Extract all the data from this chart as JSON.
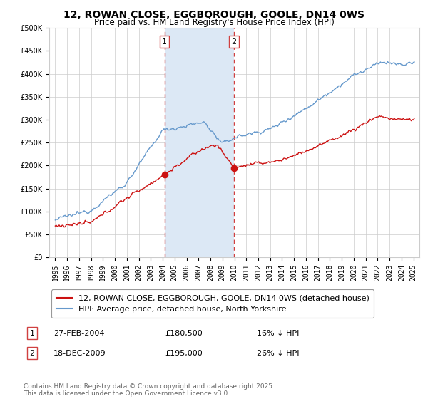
{
  "title": "12, ROWAN CLOSE, EGGBOROUGH, GOOLE, DN14 0WS",
  "subtitle": "Price paid vs. HM Land Registry's House Price Index (HPI)",
  "legend_label_red": "12, ROWAN CLOSE, EGGBOROUGH, GOOLE, DN14 0WS (detached house)",
  "legend_label_blue": "HPI: Average price, detached house, North Yorkshire",
  "sale1_date": "27-FEB-2004",
  "sale1_price": 180500,
  "sale1_hpi_pct": "16%",
  "sale2_date": "18-DEC-2009",
  "sale2_price": 195000,
  "sale2_hpi_pct": "26%",
  "copyright_text": "Contains HM Land Registry data © Crown copyright and database right 2025.\nThis data is licensed under the Open Government Licence v3.0.",
  "sale1_year": 2004.15,
  "sale2_year": 2009.97,
  "ylim": [
    0,
    500000
  ],
  "xlim_start": 1994.5,
  "xlim_end": 2025.5,
  "shaded_color": "#dce8f5",
  "vline_color": "#d04040",
  "red_line_color": "#cc1111",
  "blue_line_color": "#6699cc",
  "grid_color": "#cccccc",
  "title_fontsize": 10,
  "subtitle_fontsize": 8.5,
  "tick_fontsize": 7,
  "legend_fontsize": 8,
  "table_fontsize": 8,
  "copyright_fontsize": 6.5
}
